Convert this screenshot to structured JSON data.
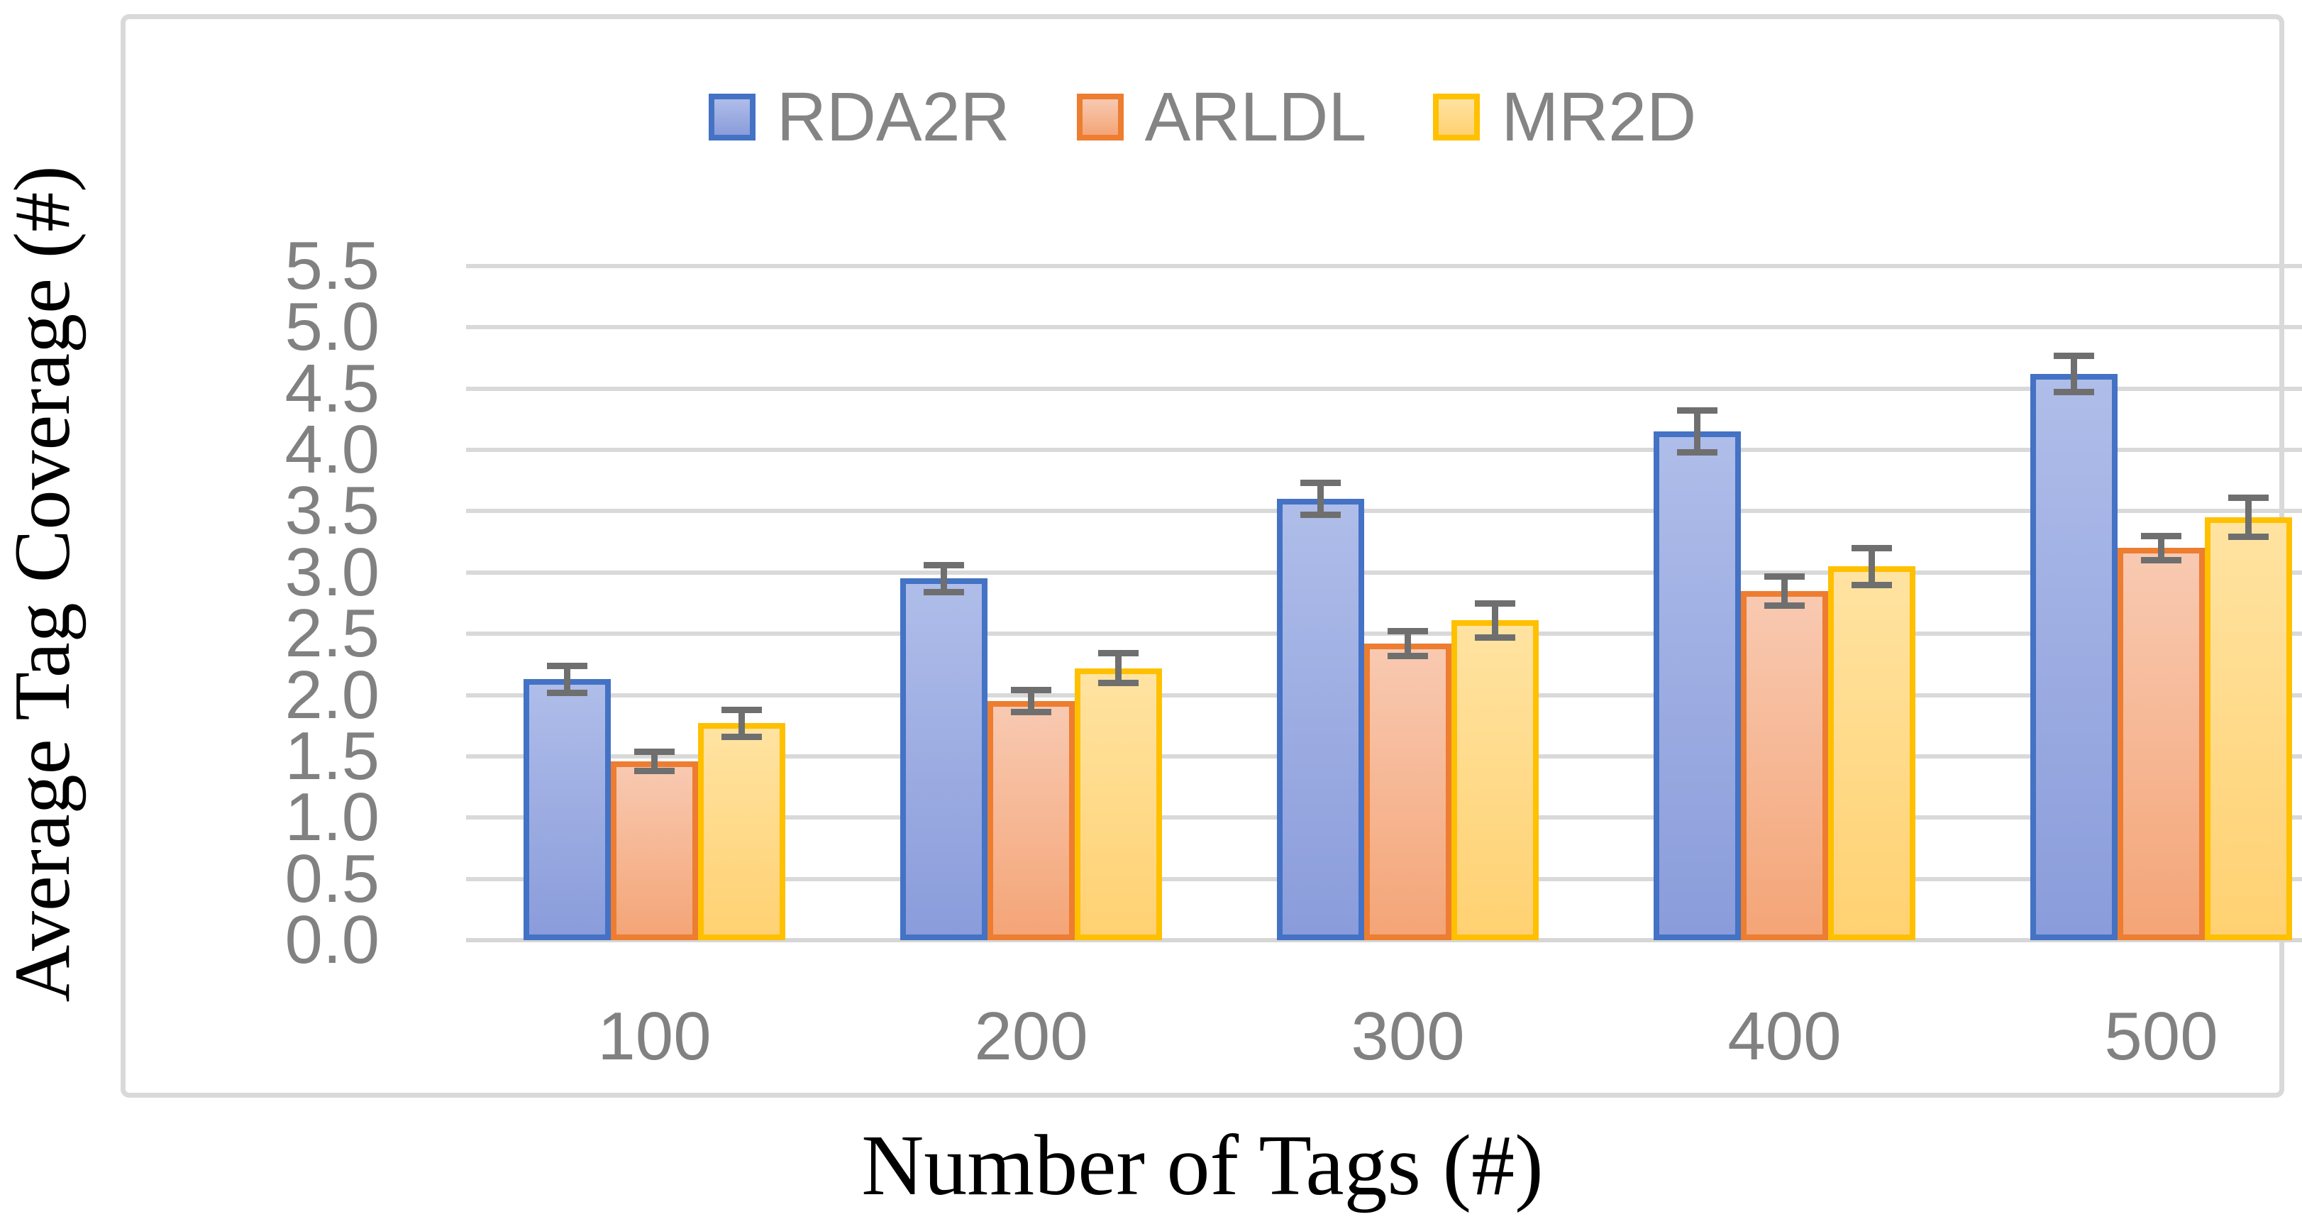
{
  "figure": {
    "kind": "grouped-bar-chart-figure",
    "background": "#FFFFFF"
  },
  "panel": {
    "background": "#FFFFFF",
    "border_color": "#D9D9D9"
  },
  "colors": {
    "gridline": "#D9D9D9",
    "axis_line": "#D6D6D6",
    "tick_text": "#818181",
    "legend_text": "#848484",
    "error_bar": "#6F6F6F",
    "title_text": "#000000"
  },
  "chart_data": {
    "type": "bar",
    "title": "",
    "xlabel": "Number of Tags (#)",
    "ylabel": "Average Tag Coverage (#)",
    "categories": [
      "100",
      "200",
      "300",
      "400",
      "500"
    ],
    "series": [
      {
        "name": "RDA2R",
        "border_color": "#4472C4",
        "fill_top": "#AFBDE9",
        "fill_bottom": "#8A9CDB",
        "values": [
          2.13,
          2.95,
          3.6,
          4.15,
          4.62
        ],
        "errors": [
          0.11,
          0.11,
          0.13,
          0.17,
          0.15
        ]
      },
      {
        "name": "ARLDL",
        "border_color": "#ED7D31",
        "fill_top": "#F8C9B1",
        "fill_bottom": "#F4A577",
        "values": [
          1.46,
          1.95,
          2.42,
          2.85,
          3.2
        ],
        "errors": [
          0.08,
          0.09,
          0.1,
          0.12,
          0.1
        ]
      },
      {
        "name": "MR2D",
        "border_color": "#FFC000",
        "fill_top": "#FFE3A1",
        "fill_bottom": "#FFD172",
        "values": [
          1.77,
          2.22,
          2.61,
          3.05,
          3.45
        ],
        "errors": [
          0.11,
          0.12,
          0.14,
          0.15,
          0.16
        ]
      }
    ],
    "ylim": [
      0,
      5.5
    ],
    "ytick_step": 0.5,
    "y_ticks": [
      "0.0",
      "0.5",
      "1.0",
      "1.5",
      "2.0",
      "2.5",
      "3.0",
      "3.5",
      "4.0",
      "4.5",
      "5.0",
      "5.5"
    ],
    "grid": true,
    "legend_position": "top-center"
  }
}
